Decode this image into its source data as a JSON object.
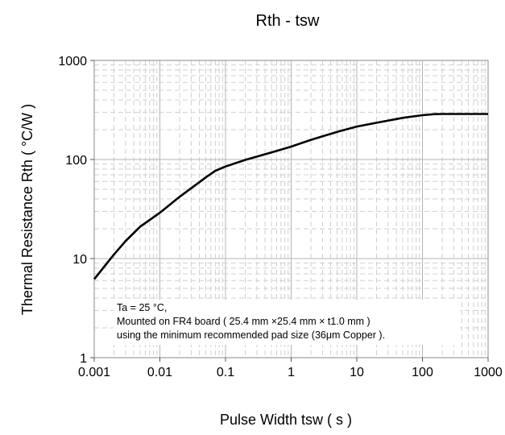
{
  "chart_data": {
    "type": "line",
    "title": "Rth - tsw",
    "xlabel": "Pulse Width tsw ( s )",
    "ylabel": "Thermal Resistance Rth ( °C/W )",
    "x_scale": "log",
    "y_scale": "log",
    "xlim": [
      0.001,
      1000
    ],
    "ylim": [
      1,
      1000
    ],
    "x_ticks": [
      "0.001",
      "0.01",
      "0.1",
      "1",
      "10",
      "100",
      "1000"
    ],
    "y_ticks": [
      "1",
      "10",
      "100",
      "1000"
    ],
    "grid": true,
    "series": [
      {
        "x": [
          0.001,
          0.002,
          0.003,
          0.005,
          0.01,
          0.02,
          0.05,
          0.07,
          0.1,
          0.2,
          0.5,
          1,
          2,
          5,
          10,
          20,
          50,
          100,
          150,
          200,
          500,
          1000
        ],
        "y": [
          6.2,
          11,
          15,
          21,
          29,
          42,
          66,
          77,
          85,
          99,
          118,
          135,
          158,
          190,
          215,
          235,
          263,
          280,
          287,
          288,
          288,
          288
        ]
      }
    ],
    "annotation": [
      "Ta = 25 °C,",
      "Mounted on FR4 board  ( 25.4 mm ×25.4 mm × t1.0 mm )",
      "using the minimum recommended pad size (36μm Copper )."
    ],
    "colors": {
      "line": "#000000",
      "grid_major": "#b4b4b4",
      "grid_minor": "#cfcfcf"
    }
  }
}
